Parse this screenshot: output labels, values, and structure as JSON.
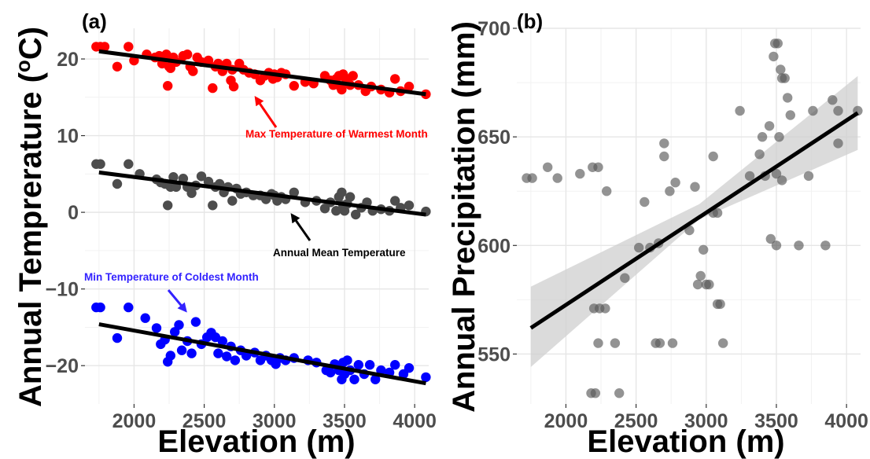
{
  "chart_data": [
    {
      "type": "scatter",
      "panel_label": "(a)",
      "xlabel": "Elevation (m)",
      "ylabel": "Annual Temprerature (",
      "ylabel_sup": "o",
      "ylabel_end": "C)",
      "xlim": [
        1650,
        4100
      ],
      "ylim": [
        -25,
        24
      ],
      "x_ticks": [
        2000,
        2500,
        3000,
        3500,
        4000
      ],
      "y_ticks": [
        -20,
        -10,
        0,
        10,
        20
      ],
      "y_tick_labels": [
        "−20",
        "−10",
        "0",
        "10",
        "20"
      ],
      "grid": true,
      "series": [
        {
          "color": "#ff0000",
          "annotation": "Max Temperature of Warmest Month",
          "fit": {
            "x": [
              1750,
              4080
            ],
            "y": [
              21.0,
              15.4
            ]
          },
          "points": [
            [
              1730,
              21.6
            ],
            [
              1760,
              21.6
            ],
            [
              1790,
              21.6
            ],
            [
              1880,
              19.0
            ],
            [
              1960,
              21.6
            ],
            [
              2000,
              19.8
            ],
            [
              2090,
              20.6
            ],
            [
              2150,
              20.2
            ],
            [
              2180,
              20.4
            ],
            [
              2200,
              19.4
            ],
            [
              2230,
              20.6
            ],
            [
              2240,
              16.5
            ],
            [
              2250,
              19.0
            ],
            [
              2260,
              18.8
            ],
            [
              2280,
              20.2
            ],
            [
              2300,
              19.6
            ],
            [
              2350,
              20.4
            ],
            [
              2380,
              20.6
            ],
            [
              2400,
              19.0
            ],
            [
              2420,
              18.4
            ],
            [
              2450,
              20.2
            ],
            [
              2480,
              19.6
            ],
            [
              2530,
              19.8
            ],
            [
              2560,
              16.2
            ],
            [
              2580,
              19.0
            ],
            [
              2600,
              19.4
            ],
            [
              2630,
              18.4
            ],
            [
              2660,
              19.4
            ],
            [
              2690,
              17.2
            ],
            [
              2700,
              18.6
            ],
            [
              2710,
              16.4
            ],
            [
              2750,
              19.4
            ],
            [
              2780,
              18.6
            ],
            [
              2820,
              18.2
            ],
            [
              2860,
              18.0
            ],
            [
              2900,
              17.2
            ],
            [
              2930,
              17.8
            ],
            [
              2960,
              18.2
            ],
            [
              2990,
              17.4
            ],
            [
              3000,
              18.0
            ],
            [
              3020,
              17.6
            ],
            [
              3050,
              18.2
            ],
            [
              3080,
              18.0
            ],
            [
              3140,
              16.5
            ],
            [
              3220,
              17.0
            ],
            [
              3280,
              16.8
            ],
            [
              3360,
              17.8
            ],
            [
              3400,
              17.2
            ],
            [
              3420,
              16.6
            ],
            [
              3440,
              17.4
            ],
            [
              3460,
              17.8
            ],
            [
              3470,
              16.4
            ],
            [
              3480,
              16.0
            ],
            [
              3490,
              18.0
            ],
            [
              3500,
              17.6
            ],
            [
              3510,
              17.4
            ],
            [
              3520,
              17.0
            ],
            [
              3540,
              16.6
            ],
            [
              3560,
              17.8
            ],
            [
              3600,
              16.6
            ],
            [
              3650,
              15.8
            ],
            [
              3690,
              16.4
            ],
            [
              3760,
              16.0
            ],
            [
              3820,
              15.6
            ],
            [
              3860,
              17.4
            ],
            [
              3900,
              15.8
            ],
            [
              3960,
              16.4
            ],
            [
              4080,
              15.4
            ]
          ]
        },
        {
          "color": "#4d4d4d",
          "annotation": "Annual Mean Temperature",
          "fit": {
            "x": [
              1750,
              4080
            ],
            "y": [
              5.2,
              -0.3
            ]
          },
          "points": [
            [
              1730,
              6.3
            ],
            [
              1760,
              6.3
            ],
            [
              1880,
              3.7
            ],
            [
              1960,
              6.3
            ],
            [
              2040,
              5.0
            ],
            [
              2160,
              4.3
            ],
            [
              2190,
              3.9
            ],
            [
              2220,
              3.7
            ],
            [
              2240,
              0.9
            ],
            [
              2260,
              3.3
            ],
            [
              2280,
              4.6
            ],
            [
              2300,
              3.3
            ],
            [
              2350,
              4.4
            ],
            [
              2380,
              3.3
            ],
            [
              2410,
              2.5
            ],
            [
              2440,
              3.5
            ],
            [
              2480,
              4.7
            ],
            [
              2530,
              4.0
            ],
            [
              2560,
              0.9
            ],
            [
              2580,
              3.3
            ],
            [
              2610,
              3.7
            ],
            [
              2640,
              2.6
            ],
            [
              2670,
              3.3
            ],
            [
              2700,
              1.5
            ],
            [
              2730,
              3.1
            ],
            [
              2760,
              2.4
            ],
            [
              2800,
              2.6
            ],
            [
              2850,
              2.2
            ],
            [
              2900,
              2.2
            ],
            [
              2940,
              1.7
            ],
            [
              2980,
              2.4
            ],
            [
              3000,
              2.2
            ],
            [
              3020,
              1.5
            ],
            [
              3050,
              2.0
            ],
            [
              3080,
              1.7
            ],
            [
              3140,
              2.6
            ],
            [
              3220,
              1.3
            ],
            [
              3300,
              1.5
            ],
            [
              3360,
              0.5
            ],
            [
              3400,
              1.3
            ],
            [
              3440,
              0.2
            ],
            [
              3460,
              2.0
            ],
            [
              3480,
              2.6
            ],
            [
              3490,
              0.9
            ],
            [
              3500,
              0.2
            ],
            [
              3520,
              1.1
            ],
            [
              3540,
              2.0
            ],
            [
              3580,
              -0.3
            ],
            [
              3620,
              0.6
            ],
            [
              3660,
              1.3
            ],
            [
              3700,
              0.2
            ],
            [
              3760,
              0.4
            ],
            [
              3820,
              0.2
            ],
            [
              3860,
              1.5
            ],
            [
              3900,
              0.6
            ],
            [
              3960,
              0.9
            ],
            [
              4080,
              0.1
            ]
          ]
        },
        {
          "color": "#0000ff",
          "annotation": "Min Temperature of Coldest Month",
          "fit": {
            "x": [
              1750,
              4080
            ],
            "y": [
              -14.6,
              -22.3
            ]
          },
          "points": [
            [
              1730,
              -12.4
            ],
            [
              1760,
              -12.4
            ],
            [
              1880,
              -16.4
            ],
            [
              1960,
              -12.4
            ],
            [
              2080,
              -13.8
            ],
            [
              2160,
              -15.1
            ],
            [
              2190,
              -17.2
            ],
            [
              2220,
              -16.6
            ],
            [
              2240,
              -19.5
            ],
            [
              2260,
              -18.7
            ],
            [
              2290,
              -15.6
            ],
            [
              2320,
              -14.7
            ],
            [
              2340,
              -18.0
            ],
            [
              2380,
              -16.8
            ],
            [
              2410,
              -18.4
            ],
            [
              2440,
              -14.3
            ],
            [
              2480,
              -17.2
            ],
            [
              2520,
              -16.3
            ],
            [
              2550,
              -15.7
            ],
            [
              2580,
              -16.3
            ],
            [
              2600,
              -18.4
            ],
            [
              2630,
              -16.8
            ],
            [
              2660,
              -18.8
            ],
            [
              2690,
              -17.5
            ],
            [
              2720,
              -19.3
            ],
            [
              2760,
              -18.0
            ],
            [
              2800,
              -18.7
            ],
            [
              2860,
              -18.3
            ],
            [
              2900,
              -19.3
            ],
            [
              2940,
              -18.7
            ],
            [
              2980,
              -19.3
            ],
            [
              3010,
              -19.8
            ],
            [
              3040,
              -19.0
            ],
            [
              3080,
              -19.3
            ],
            [
              3140,
              -19.0
            ],
            [
              3240,
              -19.3
            ],
            [
              3300,
              -19.6
            ],
            [
              3370,
              -20.6
            ],
            [
              3400,
              -20.9
            ],
            [
              3430,
              -19.8
            ],
            [
              3460,
              -20.6
            ],
            [
              3480,
              -21.8
            ],
            [
              3490,
              -19.6
            ],
            [
              3500,
              -21.1
            ],
            [
              3520,
              -19.3
            ],
            [
              3540,
              -20.6
            ],
            [
              3570,
              -21.8
            ],
            [
              3600,
              -19.9
            ],
            [
              3640,
              -21.1
            ],
            [
              3680,
              -19.9
            ],
            [
              3720,
              -21.8
            ],
            [
              3760,
              -20.6
            ],
            [
              3820,
              -20.9
            ],
            [
              3860,
              -19.9
            ],
            [
              3920,
              -21.1
            ],
            [
              3960,
              -20.3
            ],
            [
              4080,
              -21.5
            ]
          ]
        }
      ]
    },
    {
      "type": "scatter",
      "panel_label": "(b)",
      "xlabel": "Elevation (m)",
      "ylabel": "Annual Precipitation (mm)",
      "xlim": [
        1650,
        4100
      ],
      "ylim": [
        527,
        700
      ],
      "x_ticks": [
        2000,
        2500,
        3000,
        3500,
        4000
      ],
      "y_ticks": [
        550,
        600,
        650,
        700
      ],
      "y_tick_labels": [
        "550",
        "600",
        "650",
        "700"
      ],
      "grid": true,
      "series": [
        {
          "color": "#595959",
          "fit": {
            "x": [
              1750,
              4080
            ],
            "y": [
              562,
              661
            ]
          },
          "confidence_band": {
            "x": [
              1750,
              2950,
              4080
            ],
            "lower": [
              544,
              612,
              644
            ],
            "upper": [
              581,
              619,
              678
            ]
          },
          "points": [
            [
              1720,
              631
            ],
            [
              1760,
              631
            ],
            [
              1870,
              636
            ],
            [
              1940,
              631
            ],
            [
              2100,
              633
            ],
            [
              2190,
              636
            ],
            [
              2230,
              636
            ],
            [
              2290,
              625
            ],
            [
              2200,
              571
            ],
            [
              2240,
              571
            ],
            [
              2280,
              571
            ],
            [
              2230,
              555
            ],
            [
              2350,
              555
            ],
            [
              2180,
              532
            ],
            [
              2210,
              532
            ],
            [
              2380,
              532
            ],
            [
              2420,
              585
            ],
            [
              2520,
              599
            ],
            [
              2560,
              620
            ],
            [
              2600,
              599
            ],
            [
              2640,
              555
            ],
            [
              2660,
              601
            ],
            [
              2670,
              555
            ],
            [
              2700,
              641
            ],
            [
              2700,
              647
            ],
            [
              2740,
              625
            ],
            [
              2760,
              555
            ],
            [
              2780,
              629
            ],
            [
              2880,
              607
            ],
            [
              2920,
              627
            ],
            [
              2940,
              582
            ],
            [
              2960,
              586
            ],
            [
              2980,
              598
            ],
            [
              3000,
              582
            ],
            [
              3020,
              582
            ],
            [
              3050,
              641
            ],
            [
              3050,
              615
            ],
            [
              3080,
              573
            ],
            [
              3080,
              615
            ],
            [
              3100,
              573
            ],
            [
              3120,
              555
            ],
            [
              3240,
              662
            ],
            [
              3310,
              632
            ],
            [
              3380,
              642
            ],
            [
              3400,
              650
            ],
            [
              3420,
              632
            ],
            [
              3450,
              655
            ],
            [
              3460,
              603
            ],
            [
              3480,
              687
            ],
            [
              3490,
              693
            ],
            [
              3500,
              600
            ],
            [
              3500,
              633
            ],
            [
              3510,
              693
            ],
            [
              3520,
              650
            ],
            [
              3530,
              681
            ],
            [
              3540,
              630
            ],
            [
              3540,
              677
            ],
            [
              3560,
              677
            ],
            [
              3580,
              668
            ],
            [
              3600,
              660
            ],
            [
              3660,
              600
            ],
            [
              3730,
              632
            ],
            [
              3760,
              662
            ],
            [
              3850,
              600
            ],
            [
              3900,
              667
            ],
            [
              3940,
              662
            ],
            [
              3940,
              647
            ],
            [
              4080,
              662
            ]
          ]
        }
      ]
    }
  ]
}
